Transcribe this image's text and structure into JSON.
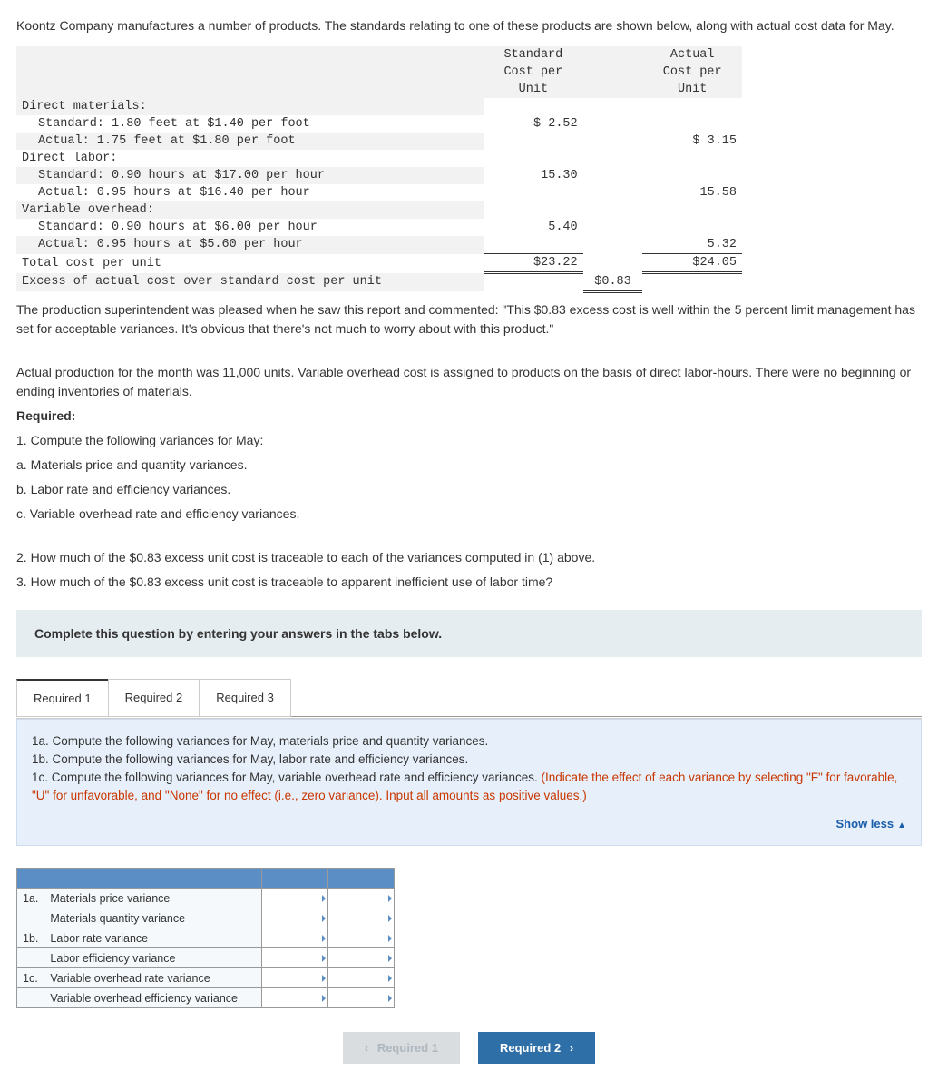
{
  "intro": "Koontz Company manufactures a number of products. The standards relating to one of these products are shown below, along with actual cost data for May.",
  "cost_table": {
    "header": {
      "col1": [
        "Standard",
        "Cost per",
        "Unit"
      ],
      "col2": [
        "Actual",
        "Cost per",
        "Unit"
      ]
    },
    "sections": [
      {
        "title": "Direct materials:",
        "std_line": "Standard: 1.80 feet at $1.40 per foot",
        "std_val": "$ 2.52",
        "act_line": "Actual: 1.75 feet at $1.80 per foot",
        "act_val": "$ 3.15"
      },
      {
        "title": "Direct labor:",
        "std_line": "Standard: 0.90 hours at $17.00 per hour",
        "std_val": "15.30",
        "act_line": "Actual: 0.95 hours at $16.40 per hour",
        "act_val": "15.58"
      },
      {
        "title": "Variable overhead:",
        "std_line": "Standard: 0.90 hours at $6.00 per hour",
        "std_val": "5.40",
        "act_line": "Actual: 0.95 hours at $5.60 per hour",
        "act_val": "5.32"
      }
    ],
    "total_label": "Total cost per unit",
    "total_std": "$23.22",
    "total_act": "$24.05",
    "excess_label": "Excess of actual cost over standard cost per unit",
    "excess_val": "$0.83"
  },
  "body": {
    "p1": "The production superintendent was pleased when he saw this report and commented: \"This $0.83 excess cost is well within the 5 percent limit management has set for acceptable variances. It's obvious that there's not much to worry about with this product.\"",
    "p2": "Actual production for the month was 11,000 units. Variable overhead cost is assigned to products on the basis of direct labor-hours. There were no beginning or ending inventories of materials.",
    "req_label": "Required:",
    "r1": "1. Compute the following variances for May:",
    "r1a": "a. Materials price and quantity variances.",
    "r1b": "b. Labor rate and efficiency variances.",
    "r1c": "c. Variable overhead rate and efficiency variances.",
    "r2": "2. How much of the $0.83 excess unit cost is traceable to each of the variances computed in (1) above.",
    "r3": "3. How much of the $0.83 excess unit cost is traceable to apparent inefficient use of labor time?"
  },
  "banner": "Complete this question by entering your answers in the tabs below.",
  "tabs": {
    "t1": "Required 1",
    "t2": "Required 2",
    "t3": "Required 3"
  },
  "instr": {
    "l1": "1a. Compute the following variances for May, materials price and quantity variances.",
    "l2": "1b. Compute the following variances for May, labor rate and efficiency variances.",
    "l3a": "1c. Compute the following variances for May, variable overhead rate and efficiency variances. ",
    "l3b": "(Indicate the effect of each variance by selecting \"F\" for favorable, \"U\" for unfavorable, and \"None\" for no effect (i.e., zero variance). Input all amounts as positive values.)",
    "show_less": "Show less"
  },
  "answer": {
    "rows": [
      {
        "g": "1a.",
        "name": "Materials price variance"
      },
      {
        "g": "",
        "name": "Materials quantity variance"
      },
      {
        "g": "1b.",
        "name": "Labor rate variance"
      },
      {
        "g": "",
        "name": "Labor efficiency variance"
      },
      {
        "g": "1c.",
        "name": "Variable overhead rate variance"
      },
      {
        "g": "",
        "name": "Variable overhead efficiency variance"
      }
    ]
  },
  "nav": {
    "prev": "Required 1",
    "next": "Required 2"
  }
}
